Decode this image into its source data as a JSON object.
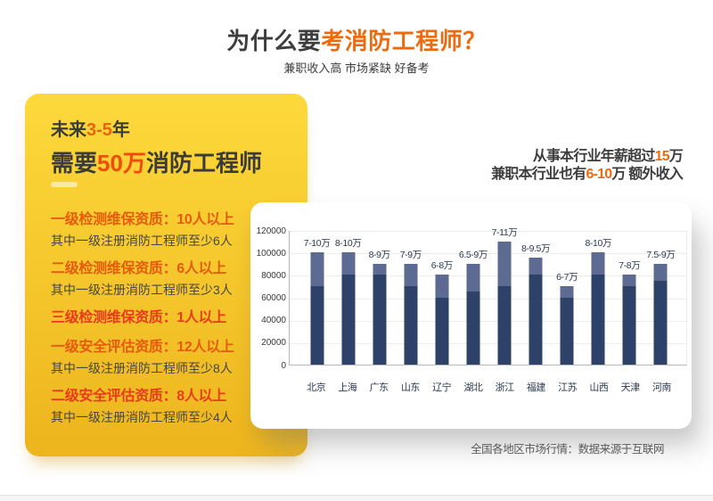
{
  "accent_color": "#ee6a0e",
  "header": {
    "title_segments": [
      {
        "text": "为什么要",
        "style": "dark"
      },
      {
        "text": "考消防工程师？",
        "style": "accent"
      }
    ],
    "subtitle": "兼职收入高 市场紧缺 好备考"
  },
  "card": {
    "line1_segments": [
      {
        "text": "未来",
        "style": "dark"
      },
      {
        "text": "3-5",
        "style": "accent"
      },
      {
        "text": "年",
        "style": "dark"
      }
    ],
    "line2_segments": [
      {
        "text": "需要",
        "style": "dark"
      },
      {
        "text": "50万",
        "style": "accent"
      },
      {
        "text": "消防工程师",
        "style": "dark"
      }
    ],
    "items": [
      {
        "title": "一级检测维保资质：10人以上",
        "sub": "其中一级注册消防工程师至少6人",
        "color": "orange"
      },
      {
        "title": "二级检测维保资质：6人以上",
        "sub": "其中一级注册消防工程师至少3人",
        "color": "orange"
      },
      {
        "title": "三级检测维保资质：1人以上",
        "sub": "",
        "color": "red"
      },
      {
        "title": "一级安全评估资质：12人以上",
        "sub": "其中一级注册消防工程师至少8人",
        "color": "orange"
      },
      {
        "title": "二级安全评估资质：8人以上",
        "sub": "其中一级注册消防工程师至少4人",
        "color": "red"
      }
    ]
  },
  "salary": {
    "line1_segments": [
      {
        "text": "从事本行业年薪超过",
        "style": "dark"
      },
      {
        "text": "15",
        "style": "accent"
      },
      {
        "text": "万",
        "style": "dark"
      }
    ],
    "line2_segments": [
      {
        "text": "兼职本行业也有",
        "style": "dark"
      },
      {
        "text": "6-10",
        "style": "accent"
      },
      {
        "text": "万 额外收入",
        "style": "dark"
      }
    ]
  },
  "chart_data": {
    "type": "bar",
    "title": "",
    "categories": [
      "北京",
      "上海",
      "广东",
      "山东",
      "辽宁",
      "湖北",
      "浙江",
      "福建",
      "江苏",
      "山西",
      "天津",
      "河南"
    ],
    "series": [
      {
        "name": "薪资下限",
        "values": [
          70000,
          80000,
          80000,
          70000,
          60000,
          65000,
          70000,
          80000,
          60000,
          80000,
          70000,
          75000
        ]
      },
      {
        "name": "薪资上限",
        "values": [
          100000,
          100000,
          90000,
          90000,
          80000,
          90000,
          110000,
          95000,
          70000,
          100000,
          80000,
          90000
        ]
      }
    ],
    "bar_labels": [
      "7-10万",
      "8-10万",
      "8-9万",
      "7-9万",
      "6-8万",
      "6.5-9万",
      "7-11万",
      "8-9.5万",
      "6-7万",
      "8-10万",
      "7-8万",
      "7.5-9万"
    ],
    "ylim": [
      0,
      120000
    ],
    "yticks": [
      0,
      20000,
      40000,
      60000,
      80000,
      100000,
      120000
    ],
    "grid": true,
    "legend": false,
    "colors": {
      "lower_segment": "#2e4269",
      "upper_segment": "#5d6a92"
    }
  },
  "caption": "全国各地区市场行情：数据来源于互联网"
}
